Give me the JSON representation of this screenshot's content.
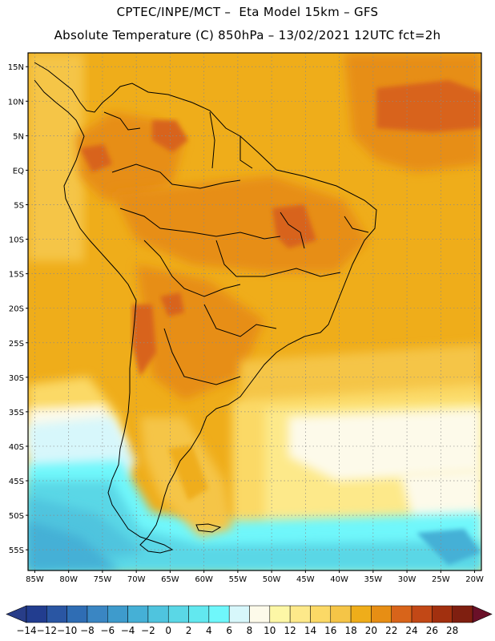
{
  "header": {
    "line1": "CPTEC/INPE/MCT –  Eta Model 15km – GFS",
    "line2": "Absolute Temperature (C) 850hPa – 13/02/2021 12UTC fct=2h"
  },
  "axes": {
    "lat_labels": [
      "15N",
      "10N",
      "5N",
      "EQ",
      "5S",
      "10S",
      "15S",
      "20S",
      "25S",
      "30S",
      "35S",
      "40S",
      "45S",
      "50S",
      "55S"
    ],
    "lat_values": [
      15,
      10,
      5,
      0,
      -5,
      -10,
      -15,
      -20,
      -25,
      -30,
      -35,
      -40,
      -45,
      -50,
      -55
    ],
    "lon_labels": [
      "85W",
      "80W",
      "75W",
      "70W",
      "65W",
      "60W",
      "55W",
      "50W",
      "45W",
      "40W",
      "35W",
      "30W",
      "25W",
      "20W"
    ],
    "lon_values": [
      -85,
      -80,
      -75,
      -70,
      -65,
      -60,
      -55,
      -50,
      -45,
      -40,
      -35,
      -30,
      -25,
      -20
    ],
    "lon_range": [
      -86,
      -19
    ],
    "lat_range": [
      -58,
      17
    ],
    "grid": true
  },
  "colorbar": {
    "labels": [
      "-14",
      "-12",
      "-10",
      "-8",
      "-6",
      "-4",
      "-2",
      "0",
      "2",
      "4",
      "6",
      "8",
      "10",
      "12",
      "14",
      "16",
      "18",
      "20",
      "22",
      "24",
      "26",
      "28"
    ],
    "colors": [
      "#223d8f",
      "#2a56a3",
      "#2f6db4",
      "#3a86c3",
      "#3e9bcc",
      "#45b0d6",
      "#4fc4de",
      "#5ad7e6",
      "#62e8ef",
      "#6ff7fb",
      "#d7f7fb",
      "#fdfaea",
      "#fdf7a6",
      "#fde98a",
      "#fbd966",
      "#f5c547",
      "#efad1a",
      "#e78e14",
      "#d8641a",
      "#c24816",
      "#a2300f",
      "#7f1f10"
    ],
    "under_color": "#283d88",
    "over_color": "#6a1028"
  }
}
